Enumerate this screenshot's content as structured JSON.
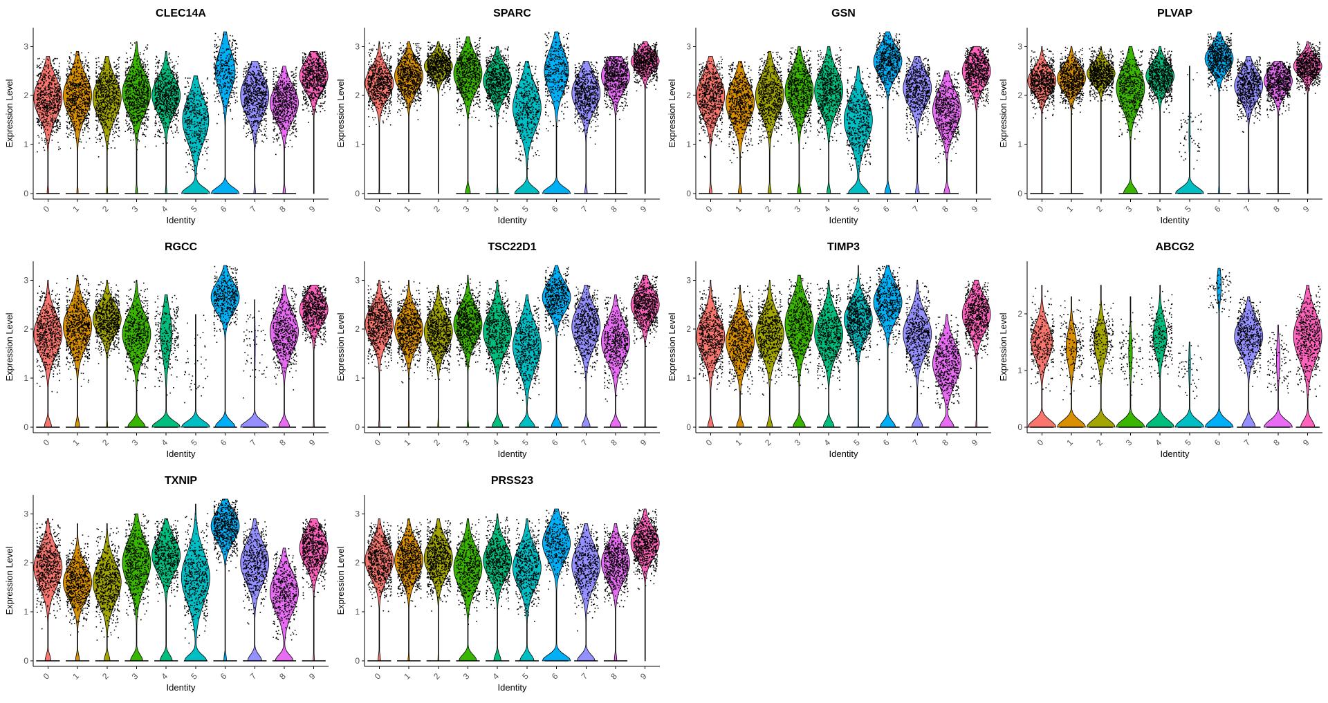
{
  "chart_data": {
    "type": "violin",
    "xlabel": "Identity",
    "ylabel": "Expression Level",
    "categories": [
      "0",
      "1",
      "2",
      "3",
      "4",
      "5",
      "6",
      "7",
      "8",
      "9"
    ],
    "colors": [
      "#F8766D",
      "#D89000",
      "#A3A500",
      "#39B600",
      "#00BF7D",
      "#00BFC4",
      "#00B0F6",
      "#9590FF",
      "#E76BF3",
      "#FF62BC"
    ],
    "panels": [
      {
        "name": "CLEC14A",
        "ylim": [
          0,
          3.3
        ],
        "yticks": [
          0,
          1,
          2,
          3
        ],
        "median": [
          1.95,
          2.0,
          1.95,
          2.05,
          2.0,
          1.5,
          2.5,
          2.0,
          1.85,
          2.4
        ],
        "spread": [
          0.4,
          0.4,
          0.4,
          0.4,
          0.35,
          0.45,
          0.4,
          0.4,
          0.35,
          0.3
        ],
        "zero_frac": [
          0.05,
          0.04,
          0.04,
          0.06,
          0.05,
          0.45,
          0.55,
          0.05,
          0.08,
          0.0
        ],
        "max": [
          2.8,
          2.9,
          2.8,
          3.1,
          2.9,
          2.4,
          3.3,
          2.7,
          2.6,
          2.9
        ]
      },
      {
        "name": "SPARC",
        "ylim": [
          0,
          3.3
        ],
        "yticks": [
          0,
          1,
          2,
          3
        ],
        "median": [
          2.25,
          2.4,
          2.6,
          2.45,
          2.3,
          1.75,
          2.5,
          2.05,
          2.4,
          2.7
        ],
        "spread": [
          0.3,
          0.3,
          0.2,
          0.35,
          0.3,
          0.45,
          0.4,
          0.35,
          0.3,
          0.2
        ],
        "zero_frac": [
          0.03,
          0.02,
          0.01,
          0.15,
          0.05,
          0.4,
          0.5,
          0.08,
          0.03,
          0.0
        ],
        "max": [
          3.1,
          3.1,
          3.1,
          3.2,
          3.0,
          2.7,
          3.3,
          2.7,
          2.8,
          3.1
        ]
      },
      {
        "name": "GSN",
        "ylim": [
          0,
          3.3
        ],
        "yticks": [
          0,
          1,
          2,
          3
        ],
        "median": [
          2.0,
          1.85,
          2.0,
          2.1,
          2.1,
          1.5,
          2.7,
          2.15,
          1.7,
          2.5
        ],
        "spread": [
          0.4,
          0.4,
          0.4,
          0.4,
          0.4,
          0.45,
          0.3,
          0.35,
          0.4,
          0.3
        ],
        "zero_frac": [
          0.08,
          0.1,
          0.09,
          0.1,
          0.1,
          0.35,
          0.2,
          0.12,
          0.15,
          0.0
        ],
        "max": [
          2.8,
          2.7,
          2.9,
          3.0,
          3.0,
          2.6,
          3.3,
          2.8,
          2.5,
          3.0
        ]
      },
      {
        "name": "PLVAP",
        "ylim": [
          0,
          3.3
        ],
        "yticks": [
          0,
          1,
          2,
          3
        ],
        "median": [
          2.3,
          2.35,
          2.45,
          2.15,
          2.4,
          1.2,
          2.75,
          2.2,
          2.3,
          2.6
        ],
        "spread": [
          0.25,
          0.25,
          0.2,
          0.4,
          0.25,
          0.45,
          0.25,
          0.3,
          0.25,
          0.2
        ],
        "zero_frac": [
          0.02,
          0.02,
          0.01,
          0.3,
          0.03,
          0.95,
          0.06,
          0.05,
          0.03,
          0.0
        ],
        "max": [
          3.0,
          3.0,
          3.0,
          3.0,
          3.0,
          2.6,
          3.3,
          2.8,
          2.7,
          3.1
        ]
      },
      {
        "name": "RGCC",
        "ylim": [
          0,
          3.3
        ],
        "yticks": [
          0,
          1,
          2,
          3
        ],
        "median": [
          1.9,
          2.05,
          2.2,
          1.9,
          1.9,
          1.3,
          2.65,
          1.7,
          1.95,
          2.4
        ],
        "spread": [
          0.4,
          0.4,
          0.3,
          0.4,
          0.45,
          0.5,
          0.3,
          0.45,
          0.4,
          0.3
        ],
        "zero_frac": [
          0.18,
          0.12,
          0.05,
          0.35,
          0.65,
          0.97,
          0.45,
          0.95,
          0.25,
          0.04
        ],
        "max": [
          3.0,
          3.1,
          3.0,
          3.0,
          2.7,
          2.3,
          3.3,
          2.6,
          2.9,
          2.9
        ]
      },
      {
        "name": "TSC22D1",
        "ylim": [
          0,
          3.3
        ],
        "yticks": [
          0,
          1,
          2,
          3
        ],
        "median": [
          2.1,
          2.0,
          1.95,
          2.1,
          1.95,
          1.65,
          2.65,
          2.05,
          1.75,
          2.5
        ],
        "spread": [
          0.35,
          0.35,
          0.35,
          0.35,
          0.4,
          0.45,
          0.3,
          0.4,
          0.4,
          0.3
        ],
        "zero_frac": [
          0.04,
          0.04,
          0.04,
          0.05,
          0.25,
          0.3,
          0.3,
          0.2,
          0.25,
          0.03
        ],
        "max": [
          3.0,
          3.0,
          2.9,
          3.1,
          3.0,
          2.7,
          3.3,
          2.9,
          2.7,
          3.1
        ]
      },
      {
        "name": "TIMP3",
        "ylim": [
          0,
          3.3
        ],
        "yticks": [
          0,
          1,
          2,
          3
        ],
        "median": [
          1.85,
          1.75,
          1.9,
          2.1,
          1.9,
          2.2,
          2.55,
          1.9,
          1.3,
          2.3
        ],
        "spread": [
          0.4,
          0.4,
          0.4,
          0.45,
          0.4,
          0.35,
          0.35,
          0.4,
          0.4,
          0.35
        ],
        "zero_frac": [
          0.15,
          0.18,
          0.15,
          0.25,
          0.25,
          0.03,
          0.35,
          0.25,
          0.3,
          0.04
        ],
        "max": [
          3.0,
          2.9,
          3.0,
          3.1,
          3.0,
          3.3,
          3.3,
          3.0,
          2.3,
          3.0
        ]
      },
      {
        "name": "ABCG2",
        "ylim": [
          0,
          2.85
        ],
        "yticks": [
          0,
          1,
          2
        ],
        "median": [
          1.5,
          1.4,
          1.5,
          1.3,
          1.6,
          1.1,
          2.5,
          1.6,
          1.2,
          1.6
        ],
        "spread": [
          0.3,
          0.3,
          0.3,
          0.3,
          0.3,
          0.3,
          0.25,
          0.3,
          0.3,
          0.4
        ],
        "zero_frac": [
          0.6,
          0.75,
          0.7,
          0.9,
          0.7,
          0.95,
          0.9,
          0.35,
          0.9,
          0.3
        ],
        "max": [
          2.5,
          2.3,
          2.5,
          2.3,
          2.5,
          1.5,
          2.8,
          2.3,
          1.8,
          2.5
        ]
      },
      {
        "name": "TXNIP",
        "ylim": [
          0,
          3.3
        ],
        "yticks": [
          0,
          1,
          2,
          3
        ],
        "median": [
          1.9,
          1.6,
          1.6,
          2.0,
          2.15,
          1.7,
          2.75,
          2.0,
          1.4,
          2.3
        ],
        "spread": [
          0.4,
          0.35,
          0.4,
          0.45,
          0.35,
          0.5,
          0.3,
          0.4,
          0.4,
          0.35
        ],
        "zero_frac": [
          0.15,
          0.12,
          0.15,
          0.25,
          0.3,
          0.35,
          0.1,
          0.3,
          0.35,
          0.04
        ],
        "max": [
          2.9,
          2.8,
          2.8,
          3.0,
          2.9,
          3.2,
          3.3,
          2.9,
          2.3,
          2.9
        ]
      },
      {
        "name": "PRSS23",
        "ylim": [
          0,
          3.3
        ],
        "yticks": [
          0,
          1,
          2,
          3
        ],
        "median": [
          2.05,
          2.05,
          2.1,
          1.9,
          2.05,
          1.9,
          2.4,
          1.95,
          2.0,
          2.4
        ],
        "spread": [
          0.35,
          0.35,
          0.35,
          0.4,
          0.35,
          0.4,
          0.35,
          0.4,
          0.35,
          0.3
        ],
        "zero_frac": [
          0.08,
          0.05,
          0.03,
          0.35,
          0.2,
          0.3,
          0.5,
          0.35,
          0.08,
          0.01
        ],
        "max": [
          2.9,
          2.9,
          2.9,
          2.9,
          3.0,
          2.9,
          3.1,
          2.8,
          2.8,
          3.1
        ]
      }
    ]
  }
}
